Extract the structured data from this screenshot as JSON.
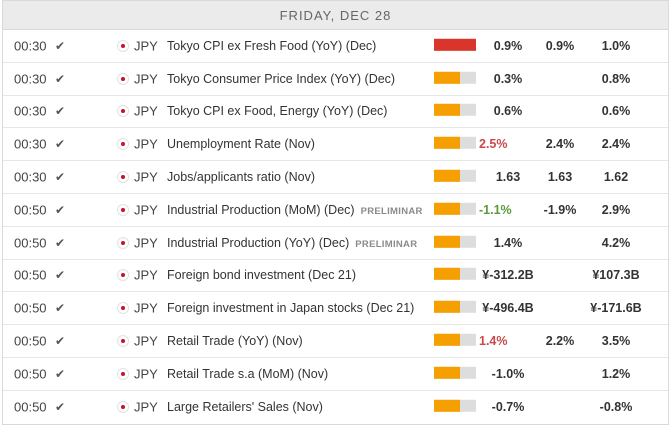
{
  "day_header": "FRIDAY, DEC 28",
  "colors": {
    "impact_high": "#d9352b",
    "impact_medium": "#f5a000",
    "negative": "#c84a4a",
    "positive": "#5a9a3c"
  },
  "rows": [
    {
      "time": "00:30",
      "currency": "JPY",
      "event": "Tokyo CPI ex Fresh Food (YoY) (Dec)",
      "tag": "",
      "impact": "high",
      "impact_level": 1.0,
      "actual": "0.9%",
      "actual_trend": "",
      "consensus": "0.9%",
      "previous": "1.0%"
    },
    {
      "time": "00:30",
      "currency": "JPY",
      "event": "Tokyo Consumer Price Index (YoY) (Dec)",
      "tag": "",
      "impact": "medium",
      "impact_level": 0.62,
      "actual": "0.3%",
      "actual_trend": "",
      "consensus": "",
      "previous": "0.8%"
    },
    {
      "time": "00:30",
      "currency": "JPY",
      "event": "Tokyo CPI ex Food, Energy (YoY) (Dec)",
      "tag": "",
      "impact": "medium",
      "impact_level": 0.62,
      "actual": "0.6%",
      "actual_trend": "",
      "consensus": "",
      "previous": "0.6%"
    },
    {
      "time": "00:30",
      "currency": "JPY",
      "event": "Unemployment Rate (Nov)",
      "tag": "",
      "impact": "medium",
      "impact_level": 0.62,
      "actual": "2.5%",
      "actual_trend": "negative",
      "consensus": "2.4%",
      "previous": "2.4%"
    },
    {
      "time": "00:30",
      "currency": "JPY",
      "event": "Jobs/applicants ratio (Nov)",
      "tag": "",
      "impact": "medium",
      "impact_level": 0.62,
      "actual": "1.63",
      "actual_trend": "",
      "consensus": "1.63",
      "previous": "1.62"
    },
    {
      "time": "00:50",
      "currency": "JPY",
      "event": "Industrial Production (MoM) (Dec)",
      "tag": "PRELIMINAR",
      "impact": "medium",
      "impact_level": 0.62,
      "actual": "-1.1%",
      "actual_trend": "positive",
      "consensus": "-1.9%",
      "previous": "2.9%"
    },
    {
      "time": "00:50",
      "currency": "JPY",
      "event": "Industrial Production (YoY) (Dec)",
      "tag": "PRELIMINAR",
      "impact": "medium",
      "impact_level": 0.62,
      "actual": "1.4%",
      "actual_trend": "",
      "consensus": "",
      "previous": "4.2%"
    },
    {
      "time": "00:50",
      "currency": "JPY",
      "event": "Foreign bond investment (Dec 21)",
      "tag": "",
      "impact": "medium",
      "impact_level": 0.62,
      "actual": "¥-312.2B",
      "actual_trend": "",
      "consensus": "",
      "previous": "¥107.3B"
    },
    {
      "time": "00:50",
      "currency": "JPY",
      "event": "Foreign investment in Japan stocks (Dec 21)",
      "tag": "",
      "impact": "medium",
      "impact_level": 0.62,
      "actual": "¥-496.4B",
      "actual_trend": "",
      "consensus": "",
      "previous": "¥-171.6B"
    },
    {
      "time": "00:50",
      "currency": "JPY",
      "event": "Retail Trade (YoY) (Nov)",
      "tag": "",
      "impact": "medium",
      "impact_level": 0.62,
      "actual": "1.4%",
      "actual_trend": "negative",
      "consensus": "2.2%",
      "previous": "3.5%"
    },
    {
      "time": "00:50",
      "currency": "JPY",
      "event": "Retail Trade s.a (MoM) (Nov)",
      "tag": "",
      "impact": "medium",
      "impact_level": 0.62,
      "actual": "-1.0%",
      "actual_trend": "",
      "consensus": "",
      "previous": "1.2%"
    },
    {
      "time": "00:50",
      "currency": "JPY",
      "event": "Large Retailers' Sales (Nov)",
      "tag": "",
      "impact": "medium",
      "impact_level": 0.62,
      "actual": "-0.7%",
      "actual_trend": "",
      "consensus": "",
      "previous": "-0.8%"
    }
  ]
}
